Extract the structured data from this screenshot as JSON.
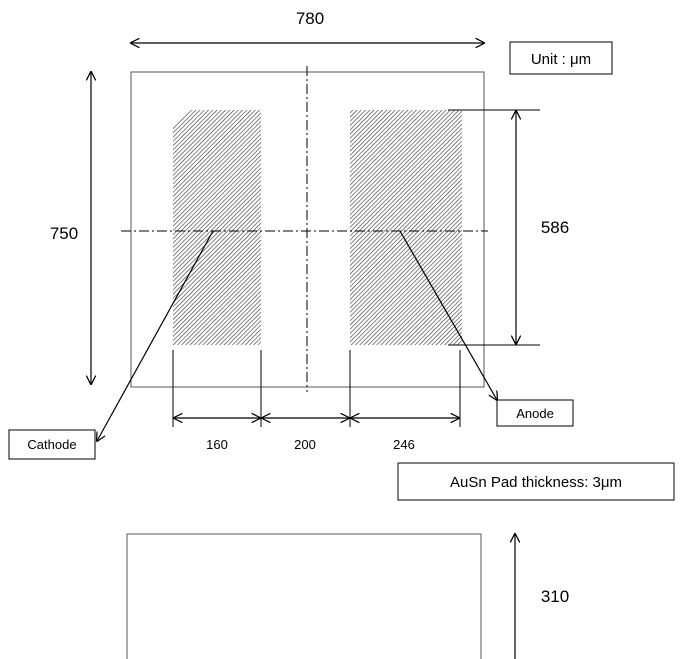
{
  "dimensions": {
    "width": "780",
    "height": "750",
    "pad_height": "586",
    "cathode_width": "160",
    "gap": "200",
    "anode_width": "246",
    "side_height": "310"
  },
  "labels": {
    "unit": "Unit : μm",
    "cathode": "Cathode",
    "anode": "Anode",
    "thickness": "AuSn Pad thickness:  3μm"
  },
  "colors": {
    "line": "#000000",
    "outline": "#555555",
    "hatch": "#333333"
  }
}
